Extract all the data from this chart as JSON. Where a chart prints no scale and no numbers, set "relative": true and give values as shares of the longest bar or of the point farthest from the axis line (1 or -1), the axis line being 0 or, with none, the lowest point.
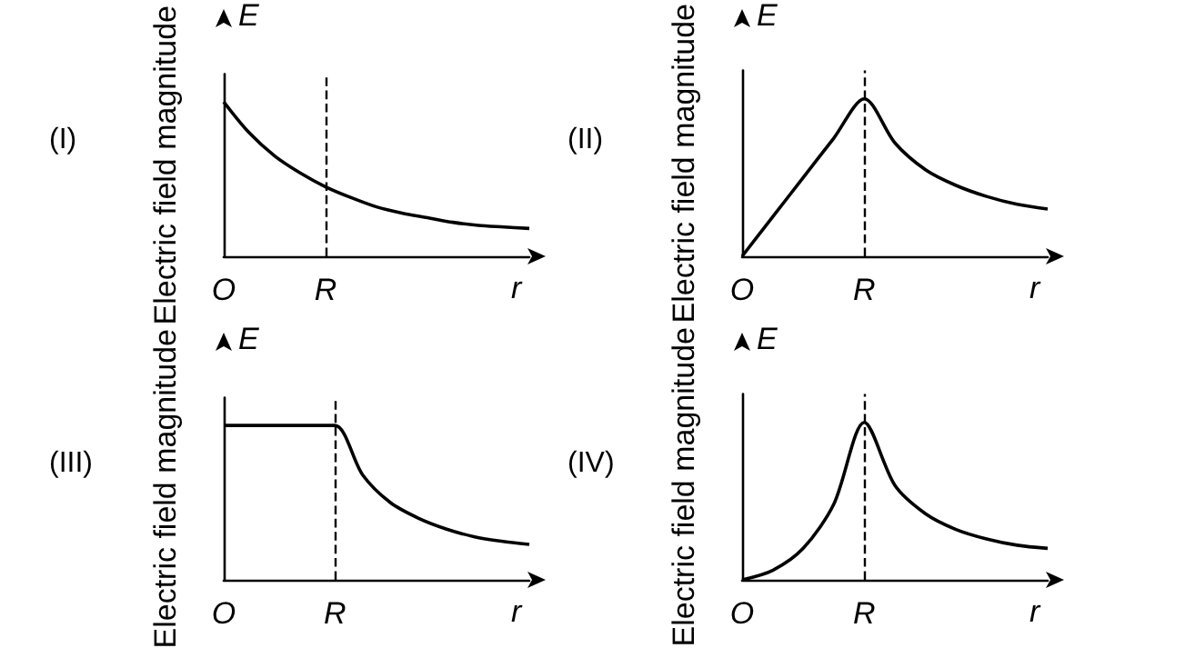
{
  "chart_data": [
    {
      "type": "line",
      "title": "(I)",
      "ylabel": "Electric field magnitude",
      "xlabel": "r",
      "annotations": [
        "E"
      ],
      "relative": true,
      "grid": false,
      "line_style": "solid",
      "categories": [
        "O",
        null,
        null,
        null,
        "R",
        null,
        null,
        null,
        null,
        null,
        null,
        null,
        null
      ],
      "series": [
        {
          "color": "#000000",
          "values": [
            1,
            0.8,
            0.65,
            0.54,
            0.45,
            0.38,
            0.32,
            0.28,
            0.25,
            0.22,
            0.2,
            0.19,
            0.18
          ]
        }
      ],
      "ref_lines": [
        {
          "axis": "x",
          "value": "R",
          "line_style": "dashed",
          "color": "#000000"
        }
      ]
    },
    {
      "type": "line",
      "title": "(II)",
      "ylabel": "Electric field magnitude",
      "xlabel": "r",
      "annotations": [
        "E"
      ],
      "relative": true,
      "grid": false,
      "line_style": "solid",
      "categories": [
        "O",
        null,
        null,
        null,
        "R",
        null,
        null,
        null,
        null,
        null,
        null
      ],
      "series": [
        {
          "color": "#000000",
          "values": [
            0,
            0.25,
            0.5,
            0.75,
            1,
            0.72,
            0.55,
            0.45,
            0.38,
            0.33,
            0.3
          ]
        }
      ],
      "ref_lines": [
        {
          "axis": "x",
          "value": "R",
          "line_style": "dashed",
          "color": "#000000"
        }
      ]
    },
    {
      "type": "line",
      "title": "(III)",
      "ylabel": "Electric field magnitude",
      "xlabel": "r",
      "annotations": [
        "E"
      ],
      "relative": true,
      "grid": false,
      "line_style": "solid",
      "categories": [
        "O",
        null,
        null,
        null,
        "R",
        null,
        null,
        null,
        null,
        null,
        null,
        null
      ],
      "series": [
        {
          "color": "#000000",
          "values": [
            1,
            1,
            1,
            1,
            1,
            0.68,
            0.5,
            0.4,
            0.33,
            0.28,
            0.25,
            0.23
          ]
        }
      ],
      "ref_lines": [
        {
          "axis": "x",
          "value": "R",
          "line_style": "dashed",
          "color": "#000000"
        }
      ]
    },
    {
      "type": "line",
      "title": "(IV)",
      "ylabel": "Electric field magnitude",
      "xlabel": "r",
      "annotations": [
        "E"
      ],
      "relative": true,
      "grid": false,
      "line_style": "solid",
      "categories": [
        "O",
        null,
        null,
        null,
        "R",
        null,
        null,
        null,
        null,
        null,
        null
      ],
      "series": [
        {
          "color": "#000000",
          "values": [
            0,
            0.06,
            0.2,
            0.48,
            1,
            0.6,
            0.42,
            0.32,
            0.26,
            0.22,
            0.2
          ]
        }
      ],
      "ref_lines": [
        {
          "axis": "x",
          "value": "R",
          "line_style": "dashed",
          "color": "#000000"
        }
      ]
    }
  ]
}
